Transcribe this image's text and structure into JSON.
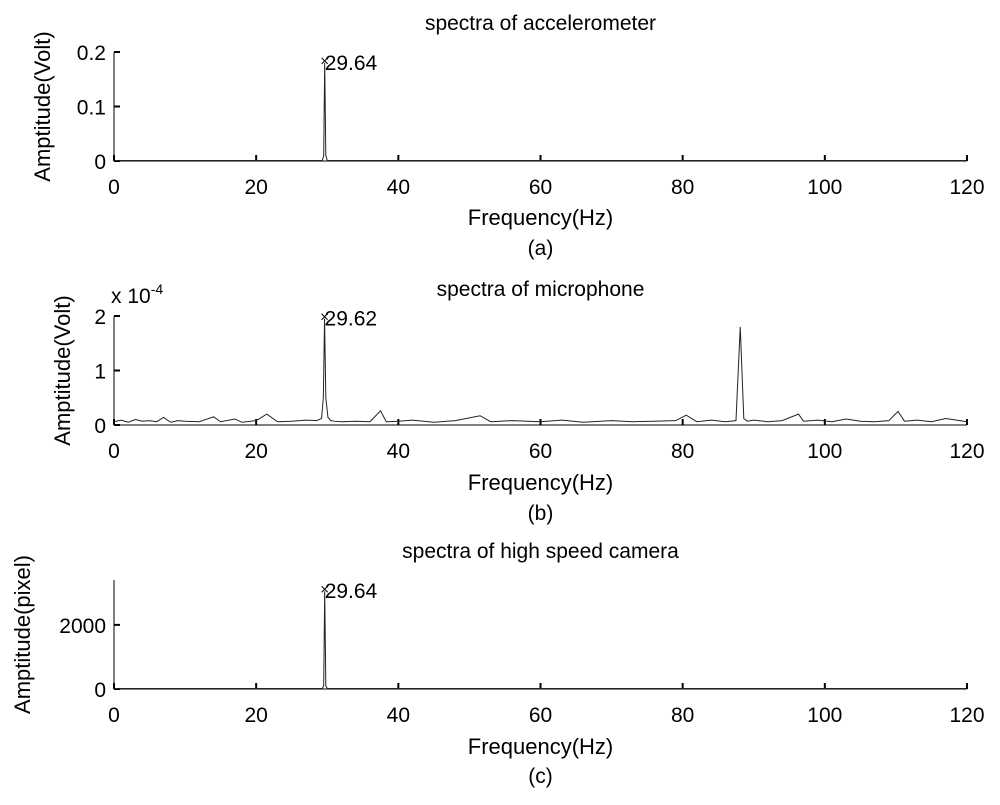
{
  "chart_data": [
    {
      "type": "line",
      "title": "spectra of accelerometer",
      "xlabel": "Frequency(Hz)",
      "ylabel": "Amptitude(Volt)",
      "caption": "(a)",
      "exponent_label": "",
      "xlim": [
        0,
        120
      ],
      "ylim": [
        0,
        0.2
      ],
      "xticks": [
        0,
        20,
        40,
        60,
        80,
        100,
        120
      ],
      "yticks": [
        0,
        0.1,
        0.2
      ],
      "ytick_labels": [
        "0",
        "0.1",
        "0.2"
      ],
      "grid": false,
      "annotations": [
        {
          "x": 29.64,
          "y": 0.18,
          "text": "29.64"
        }
      ],
      "series": [
        {
          "x": [
            0,
            29.3,
            29.5,
            29.64,
            29.8,
            30.0,
            120
          ],
          "y": [
            0.001,
            0.001,
            0.01,
            0.18,
            0.01,
            0.001,
            0.001
          ]
        }
      ]
    },
    {
      "type": "line",
      "title": "spectra of microphone",
      "xlabel": "Frequency(Hz)",
      "ylabel": "Amptitude(Volt)",
      "caption": "(b)",
      "exponent_label": "x 10",
      "exponent_power": "-4",
      "xlim": [
        0,
        120
      ],
      "ylim": [
        0,
        0.0002
      ],
      "xticks": [
        0,
        20,
        40,
        60,
        80,
        100,
        120
      ],
      "yticks": [
        0,
        0.0001,
        0.0002
      ],
      "ytick_labels": [
        "0",
        "1",
        "2"
      ],
      "grid": false,
      "annotations": [
        {
          "x": 29.62,
          "y": 0.000195,
          "text": "29.62"
        }
      ],
      "series": [
        {
          "x": [
            0,
            1,
            2,
            3,
            4,
            5,
            6,
            7,
            7.5,
            8,
            9,
            10,
            12,
            14,
            15,
            17,
            18,
            20,
            21.5,
            23,
            25,
            27,
            28.5,
            29.2,
            29.45,
            29.62,
            29.8,
            30.1,
            30.5,
            31,
            32,
            34,
            36,
            37.5,
            38.3,
            40,
            42,
            45,
            48,
            51.5,
            53,
            56,
            60,
            63,
            66,
            70,
            73,
            76,
            79,
            80.5,
            82,
            84,
            86,
            87.5,
            88.1,
            88.6,
            89.1,
            90,
            92,
            94,
            96.3,
            97,
            99,
            101,
            103,
            105,
            107,
            109,
            110.3,
            111.2,
            113,
            115,
            117,
            119,
            120
          ],
          "y": [
            6e-06,
            9e-06,
            5e-06,
            1e-05,
            7e-06,
            8e-06,
            6e-06,
            1.4e-05,
            9e-06,
            5e-06,
            8e-06,
            7e-06,
            6e-06,
            1.5e-05,
            6e-06,
            1.1e-05,
            5e-06,
            8e-06,
            2e-05,
            6e-06,
            7e-06,
            9e-06,
            8e-06,
            1.2e-05,
            5e-05,
            0.000195,
            5e-05,
            1.4e-05,
            8e-06,
            7e-06,
            6e-06,
            7e-06,
            6e-06,
            2.6e-05,
            6e-06,
            7e-06,
            9e-06,
            5e-06,
            8e-06,
            1.7e-05,
            6e-06,
            8e-06,
            6e-06,
            9e-06,
            5e-06,
            8e-06,
            6e-06,
            7e-06,
            8e-06,
            1.8e-05,
            6e-06,
            9e-06,
            6e-06,
            8e-06,
            0.00018,
            1.2e-05,
            7e-06,
            9e-06,
            6e-06,
            8e-06,
            2e-05,
            7e-06,
            9e-06,
            6e-06,
            1.1e-05,
            7e-06,
            6e-06,
            8e-06,
            2.5e-05,
            7e-06,
            9e-06,
            6e-06,
            1.2e-05,
            8e-06,
            6e-06
          ]
        }
      ]
    },
    {
      "type": "line",
      "title": "spectra of high speed camera",
      "xlabel": "Frequency(Hz)",
      "ylabel": "Amptitude(pixel)",
      "caption": "(c)",
      "exponent_label": "",
      "xlim": [
        0,
        120
      ],
      "ylim": [
        0,
        3400
      ],
      "xticks": [
        0,
        20,
        40,
        60,
        80,
        100,
        120
      ],
      "yticks": [
        0,
        2000
      ],
      "ytick_labels": [
        "0",
        "2000"
      ],
      "grid": false,
      "annotations": [
        {
          "x": 29.64,
          "y": 3050,
          "text": "29.64"
        }
      ],
      "series": [
        {
          "x": [
            0,
            29.3,
            29.5,
            29.64,
            29.8,
            30.0,
            120
          ],
          "y": [
            15,
            15,
            100,
            3050,
            100,
            15,
            15
          ]
        }
      ]
    }
  ]
}
